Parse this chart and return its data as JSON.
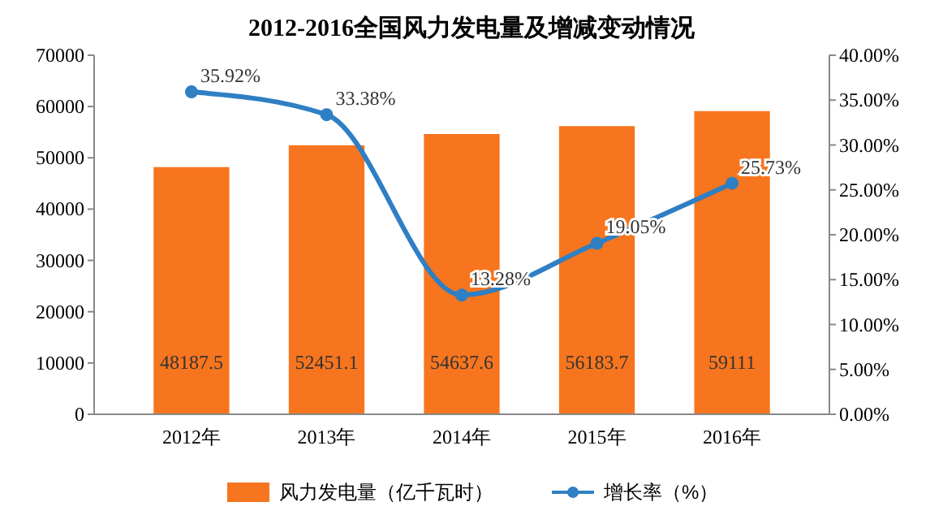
{
  "chart_data": {
    "type": "bar",
    "title": "2012-2016全国风力发电量及增减变动情况",
    "categories": [
      "2012年",
      "2013年",
      "2014年",
      "2015年",
      "2016年"
    ],
    "series": [
      {
        "name": "风力发电量（亿千瓦时）",
        "color": "#f7751e",
        "values": [
          48187.5,
          52451.1,
          54637.6,
          56183.7,
          59111
        ],
        "value_labels": [
          "48187.5",
          "52451.1",
          "54637.6",
          "56183.7",
          "59111"
        ]
      },
      {
        "name": "增长率（%）",
        "type": "line",
        "axis": "y2",
        "color": "#2f7fc4",
        "values": [
          35.92,
          33.38,
          13.28,
          19.05,
          25.73
        ],
        "value_labels": [
          "35.92%",
          "33.38%",
          "13.28%",
          "19.05%",
          "25.73%"
        ]
      }
    ],
    "ylim": [
      0,
      70000
    ],
    "yticks": [
      0,
      10000,
      20000,
      30000,
      40000,
      50000,
      60000,
      70000
    ],
    "y2lim": [
      0,
      40
    ],
    "y2ticks": [
      {
        "value": 0,
        "label": "0.00%"
      },
      {
        "value": 5,
        "label": "5.00%"
      },
      {
        "value": 10,
        "label": "10.00%"
      },
      {
        "value": 15,
        "label": "15.00%"
      },
      {
        "value": 20,
        "label": "20.00%"
      },
      {
        "value": 25,
        "label": "25.00%"
      },
      {
        "value": 30,
        "label": "30.00%"
      },
      {
        "value": 35,
        "label": "35.00%"
      },
      {
        "value": 40,
        "label": "40.00%"
      }
    ],
    "marker": "circle",
    "legend": "bottom",
    "grid": false
  }
}
